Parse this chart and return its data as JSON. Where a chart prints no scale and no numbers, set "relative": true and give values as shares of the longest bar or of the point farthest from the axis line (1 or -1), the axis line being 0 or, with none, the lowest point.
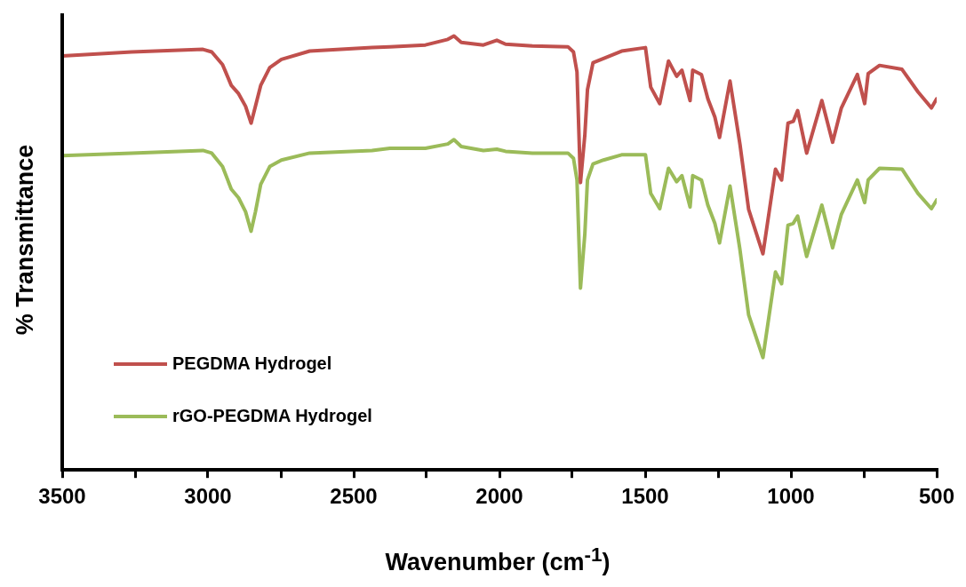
{
  "chart_data": {
    "type": "line",
    "xlabel": "Wavenumber (cm$^{-1}$)",
    "ylabel": "% Transmittance",
    "relative": true,
    "legend": "bottom left",
    "marker": "none",
    "line_style": "solid",
    "xlim": [
      3500,
      500
    ],
    "xticks": [
      3500,
      {
        "value": 3250,
        "label": null
      },
      3000,
      {
        "value": 2750,
        "label": null
      },
      2500,
      {
        "value": 2250,
        "label": null
      },
      2000,
      {
        "value": 1750,
        "label": null
      },
      1500,
      {
        "value": 1250,
        "label": null
      },
      1000,
      {
        "value": 750,
        "label": null
      },
      500
    ],
    "x": [
      3500,
      3262,
      3017,
      2987,
      2950,
      2920,
      2895,
      2871,
      2852,
      2837,
      2819,
      2788,
      2748,
      2651,
      2437,
      2376,
      2254,
      2177,
      2156,
      2131,
      2055,
      2009,
      1979,
      1887,
      1765,
      1746,
      1734,
      1722,
      1707,
      1698,
      1679,
      1643,
      1581,
      1499,
      1481,
      1450,
      1420,
      1392,
      1374,
      1346,
      1337,
      1307,
      1285,
      1261,
      1245,
      1209,
      1175,
      1145,
      1096,
      1053,
      1032,
      1010,
      992,
      977,
      946,
      894,
      857,
      827,
      772,
      747,
      735,
      696,
      619,
      564,
      518,
      500
    ],
    "series": [
      {
        "name": "PEGDMA Hydrogel",
        "color": "#c0504d",
        "values": [
          0.954,
          0.963,
          0.969,
          0.963,
          0.934,
          0.886,
          0.867,
          0.838,
          0.799,
          0.838,
          0.886,
          0.927,
          0.946,
          0.965,
          0.973,
          0.975,
          0.979,
          0.992,
          1.0,
          0.985,
          0.979,
          0.99,
          0.981,
          0.977,
          0.975,
          0.963,
          0.917,
          0.662,
          0.772,
          0.876,
          0.938,
          0.948,
          0.965,
          0.973,
          0.882,
          0.844,
          0.942,
          0.907,
          0.921,
          0.851,
          0.921,
          0.911,
          0.855,
          0.813,
          0.766,
          0.896,
          0.751,
          0.6,
          0.498,
          0.693,
          0.668,
          0.799,
          0.803,
          0.828,
          0.73,
          0.851,
          0.755,
          0.834,
          0.911,
          0.844,
          0.913,
          0.932,
          0.923,
          0.871,
          0.834,
          0.855
        ]
      },
      {
        "name": "rGO-PEGDMA Hydrogel",
        "color": "#9bbb59",
        "values": [
          0.724,
          0.73,
          0.736,
          0.73,
          0.699,
          0.647,
          0.627,
          0.595,
          0.55,
          0.595,
          0.658,
          0.699,
          0.714,
          0.73,
          0.736,
          0.741,
          0.741,
          0.751,
          0.761,
          0.745,
          0.736,
          0.739,
          0.734,
          0.73,
          0.73,
          0.718,
          0.668,
          0.419,
          0.544,
          0.668,
          0.705,
          0.714,
          0.726,
          0.726,
          0.637,
          0.602,
          0.695,
          0.664,
          0.678,
          0.606,
          0.678,
          0.668,
          0.61,
          0.568,
          0.523,
          0.654,
          0.508,
          0.357,
          0.259,
          0.456,
          0.429,
          0.564,
          0.568,
          0.585,
          0.492,
          0.61,
          0.512,
          0.589,
          0.668,
          0.616,
          0.668,
          0.695,
          0.693,
          0.637,
          0.602,
          0.622
        ]
      }
    ]
  }
}
